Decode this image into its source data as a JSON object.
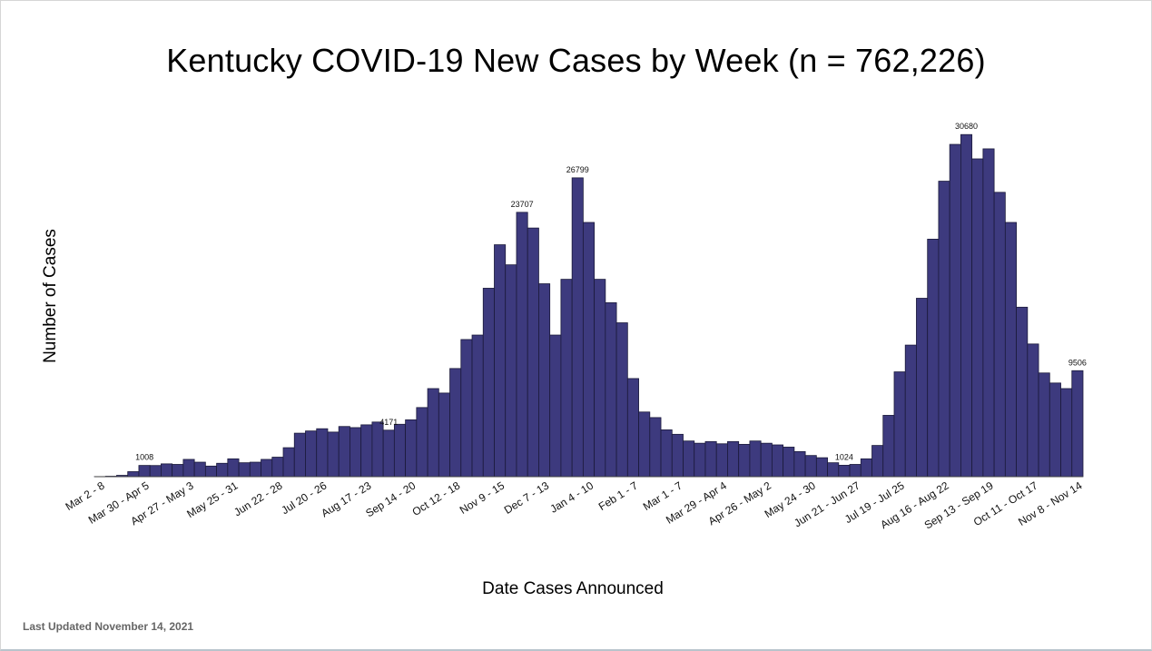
{
  "chart_data": {
    "type": "bar",
    "title": "Kentucky COVID-19 New Cases by Week (n = 762,226)",
    "xlabel": "Date Cases Announced",
    "ylabel": "Number of Cases",
    "ylim": [
      0,
      32000
    ],
    "grid": false,
    "legend": "none",
    "bar_color": "#3d3a7e",
    "tick_labels": [
      {
        "index": 0,
        "label": "Mar 2 - 8"
      },
      {
        "index": 4,
        "label": "Mar 30 - Apr 5"
      },
      {
        "index": 8,
        "label": "Apr 27 - May 3"
      },
      {
        "index": 12,
        "label": "May 25 - 31"
      },
      {
        "index": 16,
        "label": "Jun 22 - 28"
      },
      {
        "index": 20,
        "label": "Jul 20 - 26"
      },
      {
        "index": 24,
        "label": "Aug 17 - 23"
      },
      {
        "index": 28,
        "label": "Sep 14 - 20"
      },
      {
        "index": 32,
        "label": "Oct 12 - 18"
      },
      {
        "index": 36,
        "label": "Nov 9 - 15"
      },
      {
        "index": 40,
        "label": "Dec 7 - 13"
      },
      {
        "index": 44,
        "label": "Jan 4 - 10"
      },
      {
        "index": 48,
        "label": "Feb 1 - 7"
      },
      {
        "index": 52,
        "label": "Mar 1 - 7"
      },
      {
        "index": 56,
        "label": "Mar 29 - Apr 4"
      },
      {
        "index": 60,
        "label": "Apr 26 - May 2"
      },
      {
        "index": 64,
        "label": "May 24 - 30"
      },
      {
        "index": 68,
        "label": "Jun 21 - Jun 27"
      },
      {
        "index": 72,
        "label": "Jul 19 - Jul 25"
      },
      {
        "index": 76,
        "label": "Aug 16 - Aug 22"
      },
      {
        "index": 80,
        "label": "Sep 13 - Sep 19"
      },
      {
        "index": 84,
        "label": "Oct 11 - Oct 17"
      },
      {
        "index": 88,
        "label": "Nov 8 - Nov 14"
      }
    ],
    "values": [
      10,
      40,
      120,
      450,
      1008,
      1000,
      1150,
      1100,
      1550,
      1300,
      950,
      1200,
      1600,
      1250,
      1300,
      1550,
      1750,
      2600,
      3900,
      4100,
      4300,
      4000,
      4500,
      4400,
      4650,
      4900,
      4171,
      4700,
      5100,
      6200,
      7900,
      7500,
      9700,
      12300,
      12700,
      16900,
      20800,
      19000,
      23707,
      22300,
      17300,
      12700,
      17700,
      26799,
      22800,
      17700,
      15600,
      13800,
      8800,
      5800,
      5300,
      4200,
      3800,
      3200,
      3000,
      3150,
      2950,
      3150,
      2900,
      3200,
      3000,
      2850,
      2650,
      2250,
      1900,
      1700,
      1250,
      1024,
      1100,
      1600,
      2800,
      5500,
      9400,
      11800,
      16000,
      21300,
      26500,
      29800,
      30680,
      28500,
      29400,
      25500,
      22800,
      15200,
      11900,
      9300,
      8400,
      7900,
      9506
    ],
    "data_labels": [
      {
        "index": 4,
        "text": "1008"
      },
      {
        "index": 26,
        "text": "4171"
      },
      {
        "index": 38,
        "text": "23707"
      },
      {
        "index": 43,
        "text": "26799"
      },
      {
        "index": 67,
        "text": "1024"
      },
      {
        "index": 78,
        "text": "30680"
      },
      {
        "index": 88,
        "text": "9506"
      }
    ]
  },
  "footer": {
    "last_updated": "Last Updated November 14, 2021"
  }
}
